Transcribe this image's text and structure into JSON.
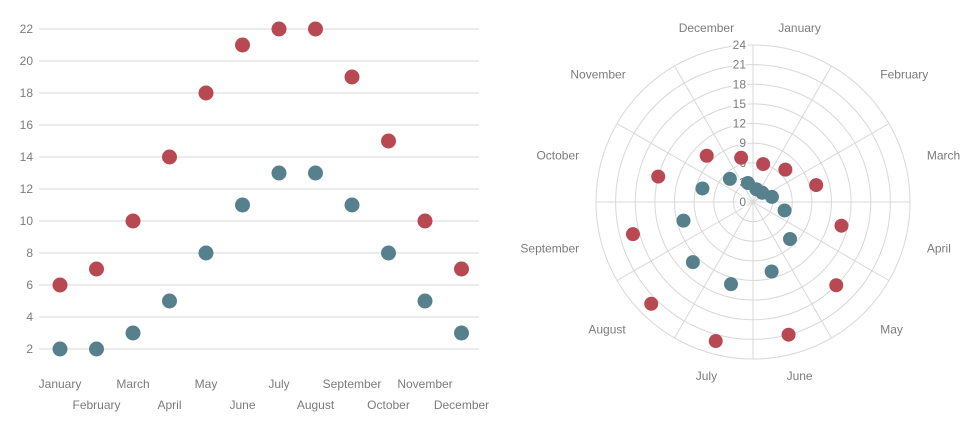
{
  "colors": {
    "series_high": "#b84953",
    "series_low": "#56818c",
    "grid": "#d8d8d8",
    "axis_text": "#7b7b7b",
    "background": "#ffffff"
  },
  "chart_data": [
    {
      "type": "scatter",
      "title": "",
      "xlabel": "",
      "ylabel": "",
      "categories": [
        "January",
        "February",
        "March",
        "April",
        "May",
        "June",
        "July",
        "August",
        "September",
        "October",
        "November",
        "December"
      ],
      "series": [
        {
          "name": "series-high",
          "color": "#b84953",
          "values": [
            6,
            7,
            10,
            14,
            18,
            21,
            22,
            22,
            19,
            15,
            10,
            7
          ]
        },
        {
          "name": "series-low",
          "color": "#56818c",
          "values": [
            2,
            2,
            3,
            5,
            8,
            11,
            13,
            13,
            11,
            8,
            5,
            3
          ]
        }
      ],
      "yticks": [
        2,
        4,
        6,
        8,
        10,
        12,
        14,
        16,
        18,
        20,
        22
      ],
      "ylim": [
        2,
        22
      ],
      "grid": true,
      "legend": "none",
      "x_label_rows": "staggered"
    },
    {
      "type": "polar-scatter",
      "title": "",
      "categories": [
        "January",
        "February",
        "March",
        "April",
        "May",
        "June",
        "July",
        "August",
        "September",
        "October",
        "November",
        "December"
      ],
      "series": [
        {
          "name": "series-high",
          "color": "#b84953",
          "values": [
            6,
            7,
            10,
            14,
            18,
            21,
            22,
            22,
            19,
            15,
            10,
            7
          ]
        },
        {
          "name": "series-low",
          "color": "#56818c",
          "values": [
            2,
            2,
            3,
            5,
            8,
            11,
            13,
            13,
            11,
            8,
            5,
            3
          ]
        }
      ],
      "rticks": [
        0,
        3,
        6,
        9,
        12,
        15,
        18,
        21,
        24
      ],
      "rlim": [
        0,
        24
      ],
      "angle_direction": "clockwise",
      "first_category_center_deg": 15,
      "sector_span_deg": 30,
      "grid": true,
      "legend": "none"
    }
  ]
}
